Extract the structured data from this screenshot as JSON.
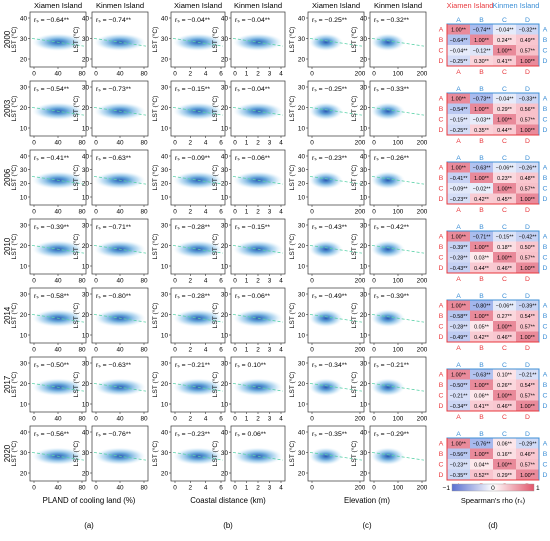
{
  "chart_data": {
    "type": "scatter",
    "years": [
      "2000",
      "2003",
      "2006",
      "2010",
      "2014",
      "2017",
      "2020"
    ],
    "islands": [
      "Xiamen Island",
      "Kinmen Island"
    ],
    "ylabel": "LST (°C)",
    "panels": [
      {
        "id": "a",
        "label": "(a)",
        "xlabel": "PLAND of cooling land (%)",
        "x_ticks": [
          [
            "0",
            "40",
            "80"
          ],
          [
            "0",
            "40",
            "80"
          ]
        ],
        "xlim": [
          [
            0,
            100
          ],
          [
            0,
            100
          ]
        ],
        "y_ticks": [
          [
            [
              "20",
              "30",
              "40"
            ],
            [
              "20",
              "30",
              "40"
            ]
          ],
          [
            [
              "10",
              "20",
              "30"
            ],
            [
              "10",
              "20",
              "30"
            ]
          ],
          [
            [
              "10",
              "20",
              "30",
              "40"
            ],
            [
              "10",
              "20",
              "30",
              "40"
            ]
          ],
          [
            [
              "10",
              "20",
              "30"
            ],
            [
              "10",
              "20",
              "30"
            ]
          ],
          [
            [
              "10",
              "20",
              "30"
            ],
            [
              "10",
              "20",
              "30"
            ]
          ],
          [
            [
              "10",
              "20",
              "30"
            ],
            [
              "10",
              "20",
              "30"
            ]
          ],
          [
            [
              "20",
              "30",
              "40"
            ],
            [
              "20",
              "30",
              "40"
            ]
          ]
        ],
        "rs": [
          [
            "−0.64**",
            "−0.74**"
          ],
          [
            "−0.54**",
            "−0.73**"
          ],
          [
            "−0.41**",
            "−0.63**"
          ],
          [
            "−0.39**",
            "−0.71**"
          ],
          [
            "−0.58**",
            "−0.80**"
          ],
          [
            "−0.50**",
            "−0.63**"
          ],
          [
            "−0.56**",
            "−0.76**"
          ]
        ]
      },
      {
        "id": "b",
        "label": "(b)",
        "xlabel": "Coastal distance (km)",
        "x_ticks": [
          [
            "0",
            "2",
            "4",
            "6"
          ],
          [
            "0",
            "1",
            "2",
            "3",
            "4"
          ]
        ],
        "xlim": [
          [
            0,
            6
          ],
          [
            0,
            4
          ]
        ],
        "y_ticks": [
          [
            [
              "20",
              "30",
              "40"
            ],
            [
              "20",
              "30",
              "40"
            ]
          ],
          [
            [
              "10",
              "20",
              "30"
            ],
            [
              "10",
              "20",
              "30"
            ]
          ],
          [
            [
              "10",
              "20",
              "30",
              "40"
            ],
            [
              "10",
              "20",
              "30",
              "40"
            ]
          ],
          [
            [
              "10",
              "20",
              "30"
            ],
            [
              "10",
              "20",
              "30"
            ]
          ],
          [
            [
              "10",
              "20",
              "30"
            ],
            [
              "10",
              "20",
              "30"
            ]
          ],
          [
            [
              "10",
              "20",
              "30"
            ],
            [
              "10",
              "20",
              "30"
            ]
          ],
          [
            [
              "20",
              "30",
              "40"
            ],
            [
              "20",
              "30",
              "40"
            ]
          ]
        ],
        "rs": [
          [
            "−0.04**",
            "−0.04**"
          ],
          [
            "−0.15**",
            "−0.04**"
          ],
          [
            "−0.09**",
            "−0.06**"
          ],
          [
            "−0.28**",
            "−0.15**"
          ],
          [
            "−0.28**",
            "−0.06**"
          ],
          [
            "−0.21**",
            "0.10**"
          ],
          [
            "−0.23**",
            "0.06**"
          ]
        ]
      },
      {
        "id": "c",
        "label": "(c)",
        "xlabel": "Elevation (m)",
        "x_ticks": [
          [
            "0",
            "200"
          ],
          [
            "0",
            "100",
            "200"
          ]
        ],
        "xlim": [
          [
            0,
            340
          ],
          [
            0,
            250
          ]
        ],
        "y_ticks": [
          [
            [
              "20",
              "30",
              "40"
            ],
            [
              "20",
              "30",
              "40"
            ]
          ],
          [
            [
              "10",
              "20",
              "30"
            ],
            [
              "10",
              "20",
              "30"
            ]
          ],
          [
            [
              "10",
              "20",
              "30",
              "40"
            ],
            [
              "10",
              "20",
              "30",
              "40"
            ]
          ],
          [
            [
              "10",
              "20",
              "30"
            ],
            [
              "10",
              "20",
              "30"
            ]
          ],
          [
            [
              "10",
              "20",
              "30"
            ],
            [
              "10",
              "20",
              "30"
            ]
          ],
          [
            [
              "10",
              "20",
              "30"
            ],
            [
              "10",
              "20",
              "30"
            ]
          ],
          [
            [
              "20",
              "30",
              "40"
            ],
            [
              "20",
              "30",
              "40"
            ]
          ]
        ],
        "rs": [
          [
            "−0.25**",
            "−0.32**"
          ],
          [
            "−0.25**",
            "−0.33**"
          ],
          [
            "−0.23**",
            "−0.26**"
          ],
          [
            "−0.43**",
            "−0.42**"
          ],
          [
            "−0.49**",
            "−0.39**"
          ],
          [
            "−0.34**",
            "−0.21**"
          ],
          [
            "−0.35**",
            "−0.29**"
          ]
        ]
      }
    ],
    "matrix": {
      "label": "(d)",
      "vars": [
        "A",
        "B",
        "C",
        "D"
      ],
      "xiamen_color": "#e8383d",
      "kinmen_color": "#3c8fd6",
      "colorbar": {
        "label": "Spearman's rho (rₛ)",
        "min": "−1",
        "mid": "0",
        "max": "1"
      },
      "years": [
        {
          "lower": [
            [
              "1.00**"
            ],
            [
              "−0.64**",
              "1.00**"
            ],
            [
              "−0.04**",
              "−0.12**",
              "1.00**"
            ],
            [
              "−0.25**",
              "0.30**",
              "0.41**",
              "1.00**"
            ]
          ],
          "upper": [
            [
              "1.00**",
              "−0.74**",
              "−0.04**",
              "−0.32**"
            ],
            [
              "1.00**",
              "0.24**",
              "0.49**"
            ],
            [
              "1.00**",
              "0.57**"
            ],
            [
              "1.00**"
            ]
          ]
        },
        {
          "lower": [
            [
              "1.00**"
            ],
            [
              "−0.54**",
              "1.00**"
            ],
            [
              "−0.15**",
              "−0.03**",
              "1.00**"
            ],
            [
              "−0.25**",
              "0.35**",
              "0.44**",
              "1.00**"
            ]
          ],
          "upper": [
            [
              "1.00**",
              "−0.73**",
              "−0.04**",
              "−0.33**"
            ],
            [
              "1.00**",
              "0.29**",
              "0.56**"
            ],
            [
              "1.00**",
              "0.57**"
            ],
            [
              "1.00**"
            ]
          ]
        },
        {
          "lower": [
            [
              "1.00**"
            ],
            [
              "−0.41**",
              "1.00**"
            ],
            [
              "−0.09**",
              "−0.02**",
              "1.00**"
            ],
            [
              "−0.23**",
              "0.42**",
              "0.45**",
              "1.00**"
            ]
          ],
          "upper": [
            [
              "1.00**",
              "−0.63**",
              "−0.06**",
              "−0.26**"
            ],
            [
              "1.00**",
              "0.23**",
              "0.48**"
            ],
            [
              "1.00**",
              "0.57**"
            ],
            [
              "1.00**"
            ]
          ]
        },
        {
          "lower": [
            [
              "1.00**"
            ],
            [
              "−0.39**",
              "1.00**"
            ],
            [
              "−0.28**",
              "0.03**",
              "1.00**"
            ],
            [
              "−0.43**",
              "0.44**",
              "0.46**",
              "1.00**"
            ]
          ],
          "upper": [
            [
              "1.00**",
              "−0.71**",
              "−0.15**",
              "−0.42**"
            ],
            [
              "1.00**",
              "0.18**",
              "0.50**"
            ],
            [
              "1.00**",
              "0.57**"
            ],
            [
              "1.00**"
            ]
          ]
        },
        {
          "lower": [
            [
              "1.00**"
            ],
            [
              "−0.58**",
              "1.00**"
            ],
            [
              "−0.28**",
              "0.05**",
              "1.00**"
            ],
            [
              "−0.49**",
              "0.42**",
              "0.46**",
              "1.00**"
            ]
          ],
          "upper": [
            [
              "1.00**",
              "−0.80**",
              "−0.06**",
              "−0.39**"
            ],
            [
              "1.00**",
              "0.27**",
              "0.54**"
            ],
            [
              "1.00**",
              "0.57**"
            ],
            [
              "1.00**"
            ]
          ]
        },
        {
          "lower": [
            [
              "1.00**"
            ],
            [
              "−0.50**",
              "1.00**"
            ],
            [
              "−0.21**",
              "0.06**",
              "1.00**"
            ],
            [
              "−0.34**",
              "0.41**",
              "0.46**",
              "1.00**"
            ]
          ],
          "upper": [
            [
              "1.00**",
              "−0.63**",
              "0.10**",
              "−0.21**"
            ],
            [
              "1.00**",
              "0.26**",
              "0.54**"
            ],
            [
              "1.00**",
              "0.57**"
            ],
            [
              "1.00**"
            ]
          ]
        },
        {
          "lower": [
            [
              "1.00**"
            ],
            [
              "−0.56**",
              "1.00**"
            ],
            [
              "−0.23**",
              "0.04**",
              "1.00**"
            ],
            [
              "−0.35**",
              "0.52**",
              "0.29**",
              "1.00**"
            ]
          ],
          "upper": [
            [
              "1.00**",
              "−0.76**",
              "0.06**",
              "−0.29**"
            ],
            [
              "1.00**",
              "0.16**",
              "0.46**"
            ],
            [
              "1.00**",
              "0.57**"
            ],
            [
              "1.00**"
            ]
          ]
        }
      ]
    }
  }
}
